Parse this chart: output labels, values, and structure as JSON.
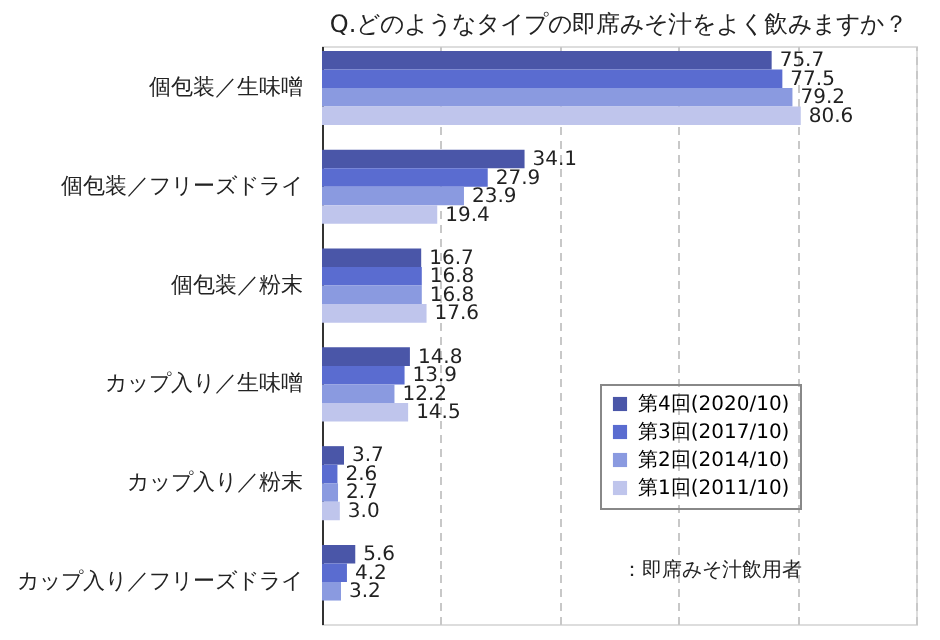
{
  "chart_data": {
    "type": "bar",
    "orientation": "horizontal",
    "title": "Q.どのようなタイプの即席みそ汁をよく飲みますか？",
    "categories": [
      "個包装／生味噌",
      "個包装／フリーズドライ",
      "個包装／粉末",
      "カップ入り／生味噌",
      "カップ入り／粉末",
      "カップ入り／フリーズドライ"
    ],
    "series": [
      {
        "name": "第4回(2020/10)",
        "color": "#4a56a8",
        "values": [
          75.7,
          34.1,
          16.7,
          14.8,
          3.7,
          5.6
        ],
        "value_labels": [
          "75.7",
          "34.1",
          "16.7",
          "14.8",
          "3.7",
          "5.6"
        ]
      },
      {
        "name": "第3回(2017/10)",
        "color": "#5a6cd0",
        "values": [
          77.5,
          27.9,
          16.8,
          13.9,
          2.6,
          4.2
        ],
        "value_labels": [
          "77.5",
          "27.9",
          "16.8",
          "13.9",
          "2.6",
          "4.2"
        ]
      },
      {
        "name": "第2回(2014/10)",
        "color": "#8a9ae0",
        "values": [
          79.2,
          23.9,
          16.8,
          12.2,
          2.7,
          3.2
        ],
        "value_labels": [
          "79.2",
          "23.9",
          "16.8",
          "12.2",
          "2.7",
          "3.2"
        ]
      },
      {
        "name": "第1回(2011/10)",
        "color": "#bfc5ec",
        "values": [
          80.6,
          19.4,
          17.6,
          14.5,
          3.0,
          null
        ],
        "value_labels": [
          "80.6",
          "19.4",
          "17.6",
          "14.5",
          "3.0",
          null
        ]
      }
    ],
    "xlim": [
      0,
      100
    ],
    "xticks": [
      {
        "value": 0,
        "label": null
      },
      {
        "value": 20,
        "label": null
      },
      {
        "value": 40,
        "label": null
      },
      {
        "value": 60,
        "label": null
      },
      {
        "value": 80,
        "label": null
      },
      {
        "value": 100,
        "label": null
      }
    ],
    "tick_labels": "y",
    "grid": "x",
    "legend": "bottom right",
    "annotations": [
      "：即席みそ汁飲用者"
    ]
  }
}
